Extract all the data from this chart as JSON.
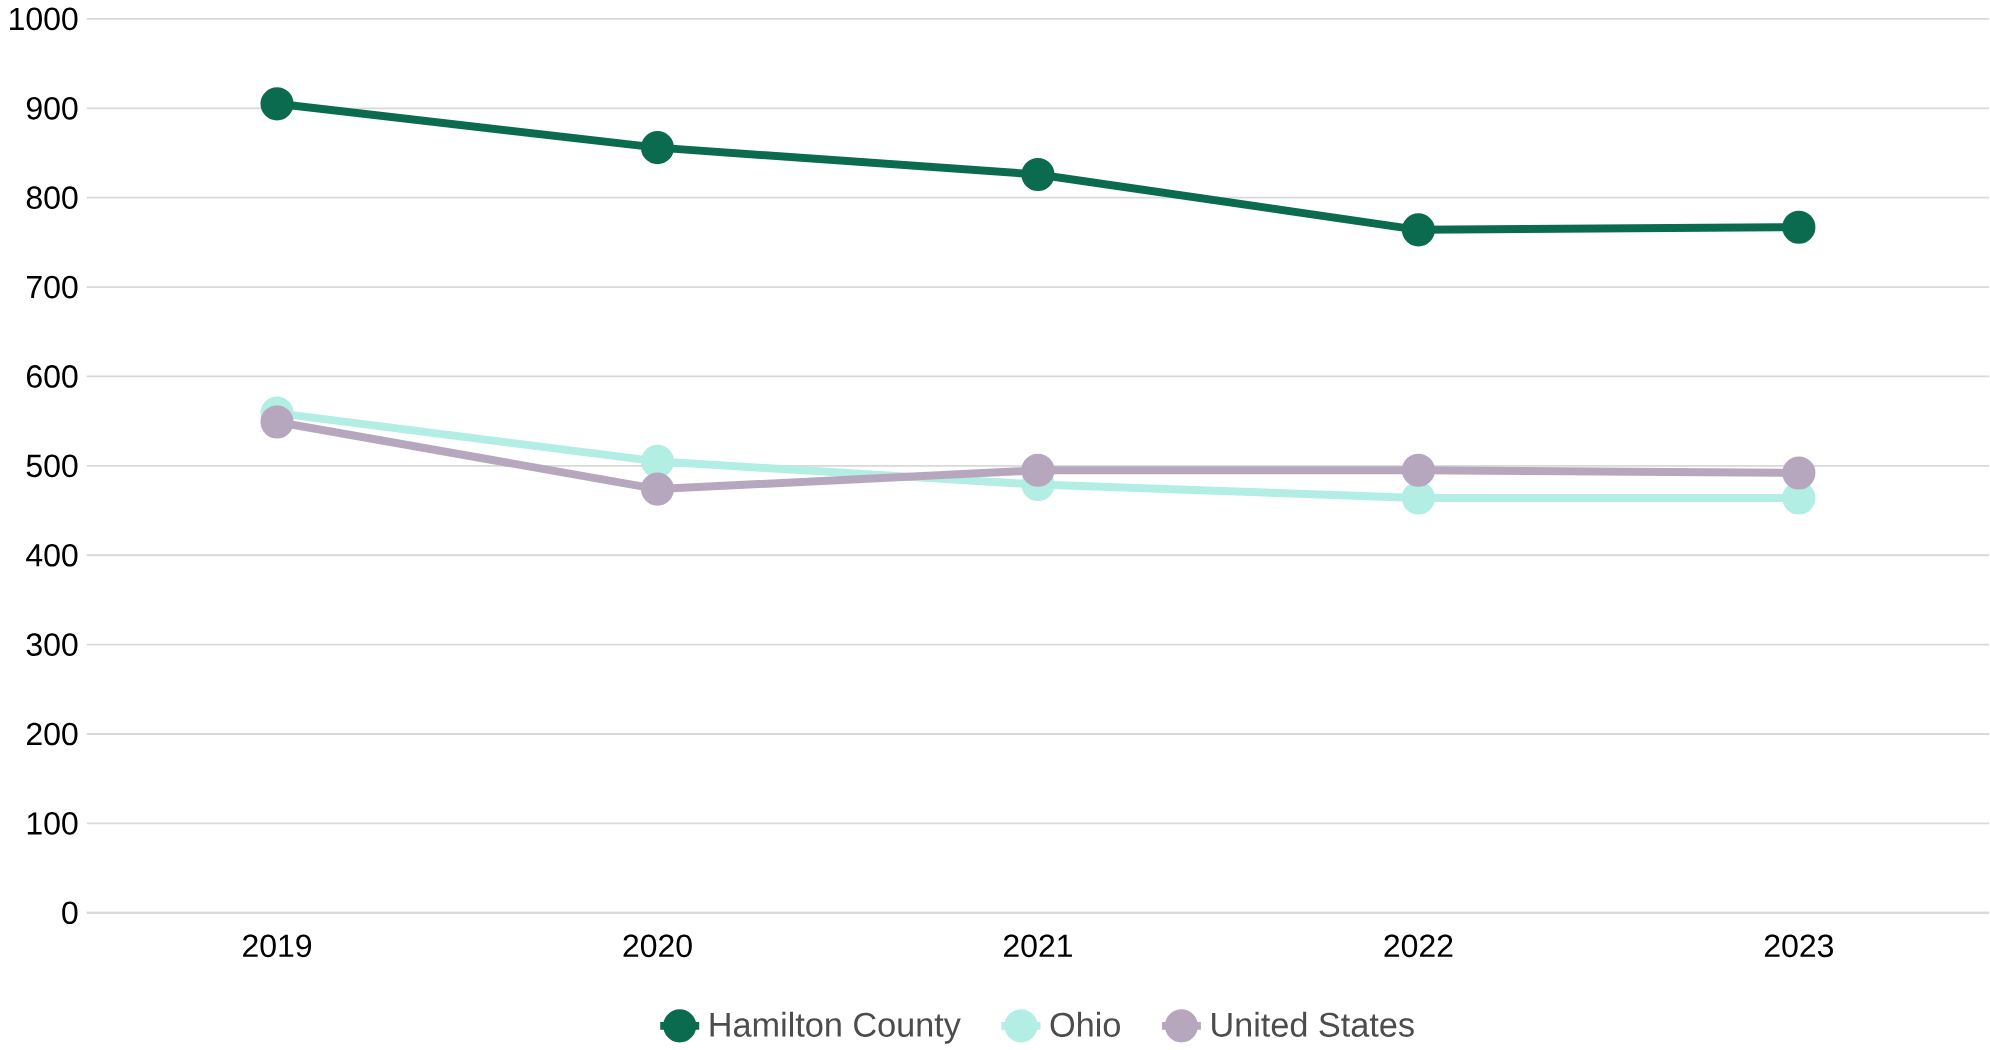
{
  "chart_data": {
    "type": "line",
    "categories": [
      "2019",
      "2020",
      "2021",
      "2022",
      "2023"
    ],
    "series": [
      {
        "name": "Hamilton County",
        "color": "#0b6b4f",
        "values": [
          905,
          856,
          826,
          764,
          767
        ]
      },
      {
        "name": "Ohio",
        "color": "#b2eee4",
        "values": [
          559,
          505,
          479,
          464,
          464
        ]
      },
      {
        "name": "United States",
        "color": "#b6a7bf",
        "values": [
          549,
          474,
          495,
          495,
          492
        ]
      }
    ],
    "ylim": [
      0,
      1000
    ],
    "yticks": [
      0,
      100,
      200,
      300,
      400,
      500,
      600,
      700,
      800,
      900,
      1000
    ],
    "grid": "y",
    "legend": "bottom",
    "marker": "circle",
    "line_style": "solid"
  }
}
